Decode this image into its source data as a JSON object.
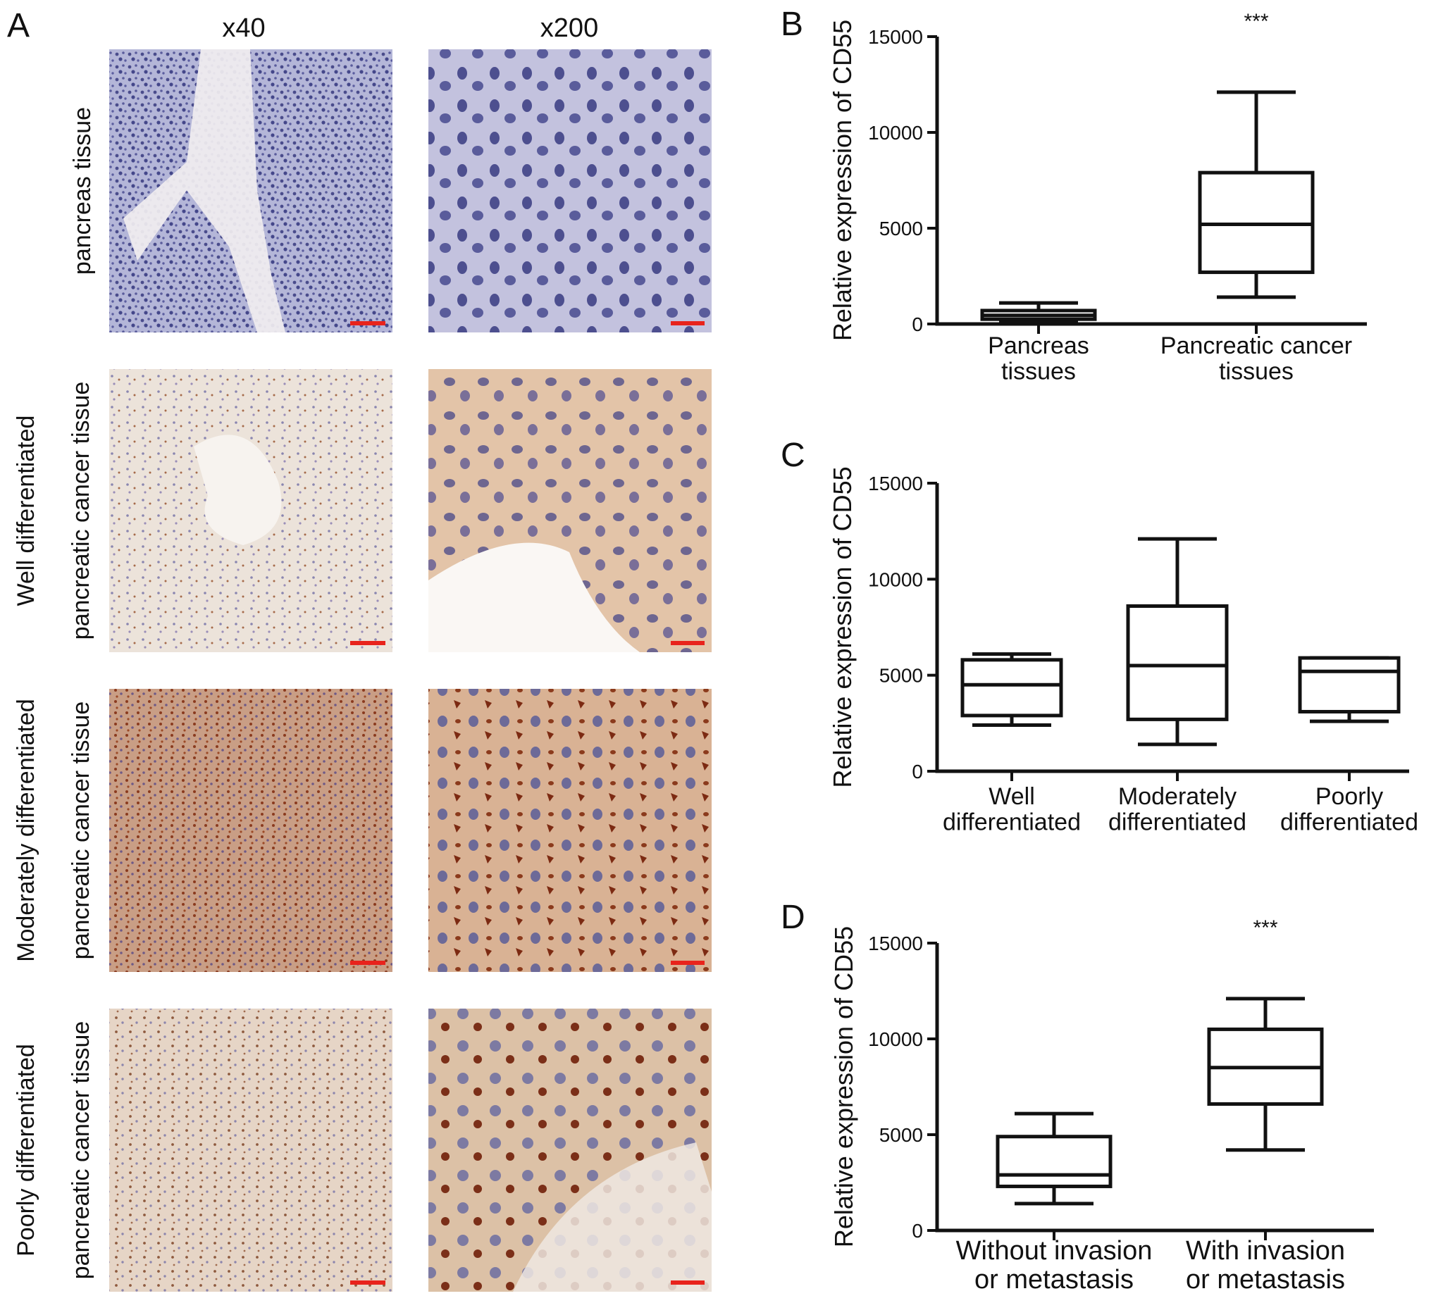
{
  "panel_a": {
    "letter": "A",
    "col_headers": [
      "x40",
      "x200"
    ],
    "rows": [
      {
        "label_lines": [
          "pancreas tissue"
        ],
        "stain": "hematoxylin"
      },
      {
        "label_lines": [
          "Well differentiated",
          "pancreatic cancer tissue"
        ],
        "stain": "light"
      },
      {
        "label_lines": [
          "Moderately differentiated",
          "pancreatic cancer tissue"
        ],
        "stain": "strong"
      },
      {
        "label_lines": [
          "Poorly differentiated",
          "pancreatic cancer tissue"
        ],
        "stain": "medium"
      }
    ],
    "colors": {
      "scale_bar": "#e8231c",
      "nucleus": "#5a5b9a",
      "stain_brown": "#a5512a"
    }
  },
  "chart_data": [
    {
      "panel": "B",
      "type": "box",
      "ylabel": "Relative expression of CD55",
      "ylim": [
        0,
        15000
      ],
      "yticks": [
        0,
        5000,
        10000,
        15000
      ],
      "categories": [
        [
          "Pancreas",
          "tissues"
        ],
        [
          "Pancreatic cancer",
          "tissues"
        ]
      ],
      "boxes": [
        {
          "min": 100,
          "q1": 250,
          "median": 450,
          "q3": 700,
          "max": 1100
        },
        {
          "min": 1400,
          "q1": 2700,
          "median": 5200,
          "q3": 7900,
          "max": 12100
        }
      ],
      "annotations": [
        {
          "category_index": 1,
          "text": "***"
        }
      ]
    },
    {
      "panel": "C",
      "type": "box",
      "ylabel": "Relative expression of CD55",
      "ylim": [
        0,
        15000
      ],
      "yticks": [
        0,
        5000,
        10000,
        15000
      ],
      "categories": [
        [
          "Well",
          "differentiated"
        ],
        [
          "Moderately",
          "differentiated"
        ],
        [
          "Poorly",
          "differentiated"
        ]
      ],
      "boxes": [
        {
          "min": 2400,
          "q1": 2900,
          "median": 4500,
          "q3": 5800,
          "max": 6100
        },
        {
          "min": 1400,
          "q1": 2700,
          "median": 5500,
          "q3": 8600,
          "max": 12100
        },
        {
          "min": 2600,
          "q1": 3100,
          "median": 5200,
          "q3": 5900,
          "max": 5900
        }
      ],
      "annotations": []
    },
    {
      "panel": "D",
      "type": "box",
      "ylabel": "Relative expression of CD55",
      "ylim": [
        0,
        15000
      ],
      "yticks": [
        0,
        5000,
        10000,
        15000
      ],
      "categories": [
        [
          "Without invasion",
          "or metastasis"
        ],
        [
          "With invasion",
          "or metastasis"
        ]
      ],
      "boxes": [
        {
          "min": 1400,
          "q1": 2300,
          "median": 2900,
          "q3": 4900,
          "max": 6100
        },
        {
          "min": 4200,
          "q1": 6600,
          "median": 8500,
          "q3": 10500,
          "max": 12100
        }
      ],
      "annotations": [
        {
          "category_index": 1,
          "text": "***"
        }
      ]
    }
  ]
}
